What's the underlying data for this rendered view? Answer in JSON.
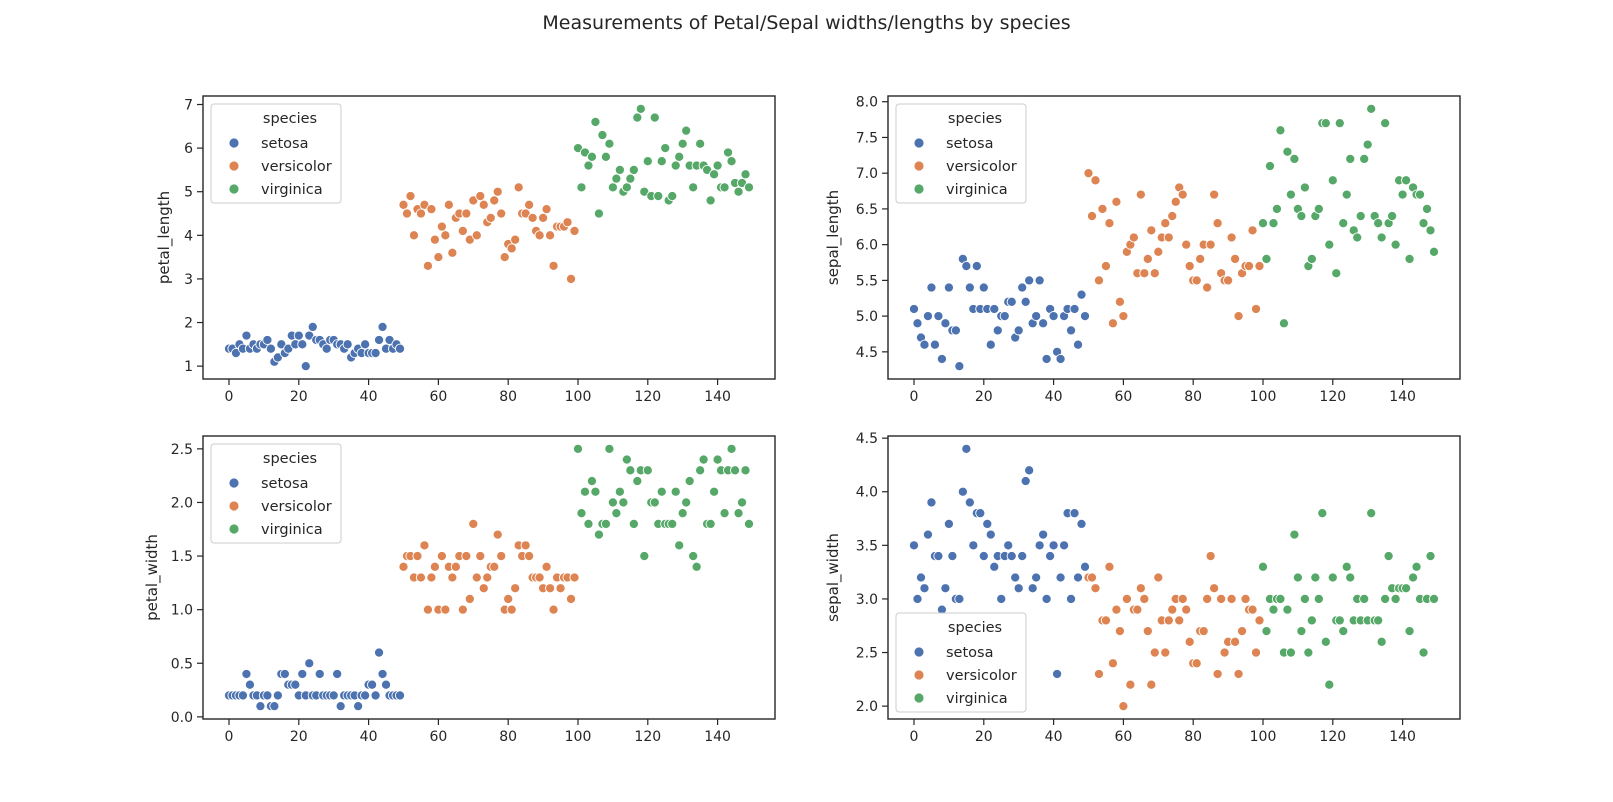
{
  "title": "Measurements of Petal/Sepal widths/lengths by species",
  "colors": {
    "setosa": "#4c72b0",
    "versicolor": "#dd8452",
    "virginica": "#55a868"
  },
  "chart_data": [
    {
      "type": "scatter",
      "ylabel": "petal_length",
      "xlim": [
        -7.45,
        156.45
      ],
      "ylim": [
        0.705,
        7.195
      ],
      "xticks": [
        "0",
        "20",
        "40",
        "60",
        "80",
        "100",
        "120",
        "140"
      ],
      "yticks": [
        "1",
        "2",
        "3",
        "4",
        "5",
        "6",
        "7"
      ],
      "legend": {
        "title": "species",
        "placement": "upper left",
        "entries": [
          "setosa",
          "versicolor",
          "virginica"
        ]
      },
      "series": [
        {
          "name": "setosa",
          "values": [
            1.4,
            1.4,
            1.3,
            1.5,
            1.4,
            1.7,
            1.4,
            1.5,
            1.4,
            1.5,
            1.5,
            1.6,
            1.4,
            1.1,
            1.2,
            1.5,
            1.3,
            1.4,
            1.7,
            1.5,
            1.7,
            1.5,
            1.0,
            1.7,
            1.9,
            1.6,
            1.6,
            1.5,
            1.4,
            1.6,
            1.6,
            1.5,
            1.5,
            1.4,
            1.5,
            1.2,
            1.3,
            1.4,
            1.3,
            1.5,
            1.3,
            1.3,
            1.3,
            1.6,
            1.9,
            1.4,
            1.6,
            1.4,
            1.5,
            1.4
          ]
        },
        {
          "name": "versicolor",
          "values": [
            4.7,
            4.5,
            4.9,
            4.0,
            4.6,
            4.5,
            4.7,
            3.3,
            4.6,
            3.9,
            3.5,
            4.2,
            4.0,
            4.7,
            3.6,
            4.4,
            4.5,
            4.1,
            4.5,
            3.9,
            4.8,
            4.0,
            4.9,
            4.7,
            4.3,
            4.4,
            4.8,
            5.0,
            4.5,
            3.5,
            3.8,
            3.7,
            3.9,
            5.1,
            4.5,
            4.5,
            4.7,
            4.4,
            4.1,
            4.0,
            4.4,
            4.6,
            4.0,
            3.3,
            4.2,
            4.2,
            4.2,
            4.3,
            3.0,
            4.1
          ]
        },
        {
          "name": "virginica",
          "values": [
            6.0,
            5.1,
            5.9,
            5.6,
            5.8,
            6.6,
            4.5,
            6.3,
            5.8,
            6.1,
            5.1,
            5.3,
            5.5,
            5.0,
            5.1,
            5.3,
            5.5,
            6.7,
            6.9,
            5.0,
            5.7,
            4.9,
            6.7,
            4.9,
            5.7,
            6.0,
            4.8,
            4.9,
            5.6,
            5.8,
            6.1,
            6.4,
            5.6,
            5.1,
            5.6,
            6.1,
            5.6,
            5.5,
            4.8,
            5.4,
            5.6,
            5.1,
            5.1,
            5.9,
            5.7,
            5.2,
            5.0,
            5.2,
            5.4,
            5.1
          ]
        }
      ]
    },
    {
      "type": "scatter",
      "ylabel": "sepal_length",
      "xlim": [
        -7.45,
        156.45
      ],
      "ylim": [
        4.12,
        8.08
      ],
      "xticks": [
        "0",
        "20",
        "40",
        "60",
        "80",
        "100",
        "120",
        "140"
      ],
      "yticks": [
        "4.5",
        "5.0",
        "5.5",
        "6.0",
        "6.5",
        "7.0",
        "7.5",
        "8.0"
      ],
      "legend": {
        "title": "species",
        "placement": "upper left",
        "entries": [
          "setosa",
          "versicolor",
          "virginica"
        ]
      },
      "series": [
        {
          "name": "setosa",
          "values": [
            5.1,
            4.9,
            4.7,
            4.6,
            5.0,
            5.4,
            4.6,
            5.0,
            4.4,
            4.9,
            5.4,
            4.8,
            4.8,
            4.3,
            5.8,
            5.7,
            5.4,
            5.1,
            5.7,
            5.1,
            5.4,
            5.1,
            4.6,
            5.1,
            4.8,
            5.0,
            5.0,
            5.2,
            5.2,
            4.7,
            4.8,
            5.4,
            5.2,
            5.5,
            4.9,
            5.0,
            5.5,
            4.9,
            4.4,
            5.1,
            5.0,
            4.5,
            4.4,
            5.0,
            5.1,
            4.8,
            5.1,
            4.6,
            5.3,
            5.0
          ]
        },
        {
          "name": "versicolor",
          "values": [
            7.0,
            6.4,
            6.9,
            5.5,
            6.5,
            5.7,
            6.3,
            4.9,
            6.6,
            5.2,
            5.0,
            5.9,
            6.0,
            6.1,
            5.6,
            6.7,
            5.6,
            5.8,
            6.2,
            5.6,
            5.9,
            6.1,
            6.3,
            6.1,
            6.4,
            6.6,
            6.8,
            6.7,
            6.0,
            5.7,
            5.5,
            5.5,
            5.8,
            6.0,
            5.4,
            6.0,
            6.7,
            6.3,
            5.6,
            5.5,
            5.5,
            6.1,
            5.8,
            5.0,
            5.6,
            5.7,
            5.7,
            6.2,
            5.1,
            5.7
          ]
        },
        {
          "name": "virginica",
          "values": [
            6.3,
            5.8,
            7.1,
            6.3,
            6.5,
            7.6,
            4.9,
            7.3,
            6.7,
            7.2,
            6.5,
            6.4,
            6.8,
            5.7,
            5.8,
            6.4,
            6.5,
            7.7,
            7.7,
            6.0,
            6.9,
            5.6,
            7.7,
            6.3,
            6.7,
            7.2,
            6.2,
            6.1,
            6.4,
            7.2,
            7.4,
            7.9,
            6.4,
            6.3,
            6.1,
            7.7,
            6.3,
            6.4,
            6.0,
            6.9,
            6.7,
            6.9,
            5.8,
            6.8,
            6.7,
            6.7,
            6.3,
            6.5,
            6.2,
            5.9
          ]
        }
      ]
    },
    {
      "type": "scatter",
      "ylabel": "petal_width",
      "xlim": [
        -7.45,
        156.45
      ],
      "ylim": [
        -0.02,
        2.62
      ],
      "xticks": [
        "0",
        "20",
        "40",
        "60",
        "80",
        "100",
        "120",
        "140"
      ],
      "yticks": [
        "0.0",
        "0.5",
        "1.0",
        "1.5",
        "2.0",
        "2.5"
      ],
      "legend": {
        "title": "species",
        "placement": "upper left",
        "entries": [
          "setosa",
          "versicolor",
          "virginica"
        ]
      },
      "series": [
        {
          "name": "setosa",
          "values": [
            0.2,
            0.2,
            0.2,
            0.2,
            0.2,
            0.4,
            0.3,
            0.2,
            0.2,
            0.1,
            0.2,
            0.2,
            0.1,
            0.1,
            0.2,
            0.4,
            0.4,
            0.3,
            0.3,
            0.3,
            0.2,
            0.4,
            0.2,
            0.5,
            0.2,
            0.2,
            0.4,
            0.2,
            0.2,
            0.2,
            0.2,
            0.4,
            0.1,
            0.2,
            0.2,
            0.2,
            0.2,
            0.1,
            0.2,
            0.2,
            0.3,
            0.3,
            0.2,
            0.6,
            0.4,
            0.3,
            0.2,
            0.2,
            0.2,
            0.2
          ]
        },
        {
          "name": "versicolor",
          "values": [
            1.4,
            1.5,
            1.5,
            1.3,
            1.5,
            1.3,
            1.6,
            1.0,
            1.3,
            1.4,
            1.0,
            1.5,
            1.0,
            1.4,
            1.3,
            1.4,
            1.5,
            1.0,
            1.5,
            1.1,
            1.8,
            1.3,
            1.5,
            1.2,
            1.3,
            1.4,
            1.4,
            1.7,
            1.5,
            1.0,
            1.1,
            1.0,
            1.2,
            1.6,
            1.5,
            1.6,
            1.5,
            1.3,
            1.3,
            1.3,
            1.2,
            1.4,
            1.2,
            1.0,
            1.3,
            1.2,
            1.3,
            1.3,
            1.1,
            1.3
          ]
        },
        {
          "name": "virginica",
          "values": [
            2.5,
            1.9,
            2.1,
            1.8,
            2.2,
            2.1,
            1.7,
            1.8,
            1.8,
            2.5,
            2.0,
            1.9,
            2.1,
            2.0,
            2.4,
            2.3,
            1.8,
            2.2,
            2.3,
            1.5,
            2.3,
            2.0,
            2.0,
            1.8,
            2.1,
            1.8,
            1.8,
            1.8,
            2.1,
            1.6,
            1.9,
            2.0,
            2.2,
            1.5,
            1.4,
            2.3,
            2.4,
            1.8,
            1.8,
            2.1,
            2.4,
            2.3,
            1.9,
            2.3,
            2.5,
            2.3,
            1.9,
            2.0,
            2.3,
            1.8
          ]
        }
      ]
    },
    {
      "type": "scatter",
      "ylabel": "sepal_width",
      "xlim": [
        -7.45,
        156.45
      ],
      "ylim": [
        1.88,
        4.52
      ],
      "xticks": [
        "0",
        "20",
        "40",
        "60",
        "80",
        "100",
        "120",
        "140"
      ],
      "yticks": [
        "2.0",
        "2.5",
        "3.0",
        "3.5",
        "4.0",
        "4.5"
      ],
      "legend": {
        "title": "species",
        "placement": "lower left",
        "entries": [
          "setosa",
          "versicolor",
          "virginica"
        ]
      },
      "series": [
        {
          "name": "setosa",
          "values": [
            3.5,
            3.0,
            3.2,
            3.1,
            3.6,
            3.9,
            3.4,
            3.4,
            2.9,
            3.1,
            3.7,
            3.4,
            3.0,
            3.0,
            4.0,
            4.4,
            3.9,
            3.5,
            3.8,
            3.8,
            3.4,
            3.7,
            3.6,
            3.3,
            3.4,
            3.0,
            3.4,
            3.5,
            3.4,
            3.2,
            3.1,
            3.4,
            4.1,
            4.2,
            3.1,
            3.2,
            3.5,
            3.6,
            3.0,
            3.4,
            3.5,
            2.3,
            3.2,
            3.5,
            3.8,
            3.0,
            3.8,
            3.2,
            3.7,
            3.3
          ]
        },
        {
          "name": "versicolor",
          "values": [
            3.2,
            3.2,
            3.1,
            2.3,
            2.8,
            2.8,
            3.3,
            2.4,
            2.9,
            2.7,
            2.0,
            3.0,
            2.2,
            2.9,
            2.9,
            3.1,
            3.0,
            2.7,
            2.2,
            2.5,
            3.2,
            2.8,
            2.5,
            2.8,
            2.9,
            3.0,
            2.8,
            3.0,
            2.9,
            2.6,
            2.4,
            2.4,
            2.7,
            2.7,
            3.0,
            3.4,
            3.1,
            2.3,
            3.0,
            2.5,
            2.6,
            3.0,
            2.6,
            2.3,
            2.7,
            3.0,
            2.9,
            2.9,
            2.5,
            2.8
          ]
        },
        {
          "name": "virginica",
          "values": [
            3.3,
            2.7,
            3.0,
            2.9,
            3.0,
            3.0,
            2.5,
            2.9,
            2.5,
            3.6,
            3.2,
            2.7,
            3.0,
            2.5,
            2.8,
            3.2,
            3.0,
            3.8,
            2.6,
            2.2,
            3.2,
            2.8,
            2.8,
            2.7,
            3.3,
            3.2,
            2.8,
            3.0,
            2.8,
            3.0,
            2.8,
            3.8,
            2.8,
            2.8,
            2.6,
            3.0,
            3.4,
            3.1,
            3.0,
            3.1,
            3.1,
            3.1,
            2.7,
            3.2,
            3.3,
            3.0,
            2.5,
            3.0,
            3.4,
            3.0
          ]
        }
      ]
    }
  ]
}
